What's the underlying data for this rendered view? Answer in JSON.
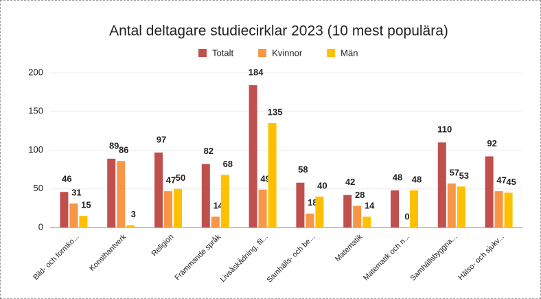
{
  "chart_data": {
    "type": "bar",
    "title": "Antal deltagare studiecirklar 2023 (10 mest populära)",
    "categories": [
      "Bild- och formko...",
      "Konsthantverk",
      "Religion",
      "Främmande språk",
      "Livsåskådning, fil...",
      "Samhälls- och be...",
      "Matematik",
      "Matematik och n...",
      "Samhällsbyggna...",
      "Hälso- och sjukv..."
    ],
    "series": [
      {
        "name": "Totalt",
        "color": "#c0504d",
        "values": [
          46,
          89,
          97,
          82,
          184,
          58,
          42,
          48,
          110,
          92
        ]
      },
      {
        "name": "Kvinnor",
        "color": "#f79646",
        "values": [
          31,
          86,
          47,
          14,
          49,
          18,
          28,
          0,
          57,
          47
        ]
      },
      {
        "name": "Män",
        "color": "#ffc000",
        "values": [
          15,
          3,
          50,
          68,
          135,
          40,
          14,
          48,
          53,
          45
        ]
      }
    ],
    "ylim": [
      0,
      200
    ],
    "yticks": [
      0,
      50,
      100,
      150,
      200
    ],
    "grid": true,
    "legend": "top"
  }
}
